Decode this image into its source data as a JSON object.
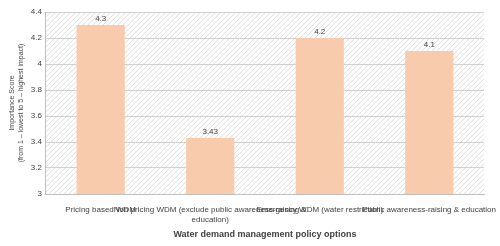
{
  "chart_data": {
    "type": "bar",
    "categories": [
      "Pricing based WDM",
      "Non pricing WDM (exclude public awareness-raising & education)",
      "Emergency WDM (water restriction)",
      "Public awareness-raising & education"
    ],
    "values": [
      4.3,
      3.43,
      4.2,
      4.1
    ],
    "color": "#f8cbad",
    "x_label": "Water demand management policy options",
    "y_label": "Importance Score\n(from 1 – lowest to 5 – highest impact)",
    "ylim": [
      3,
      4.4
    ],
    "yticks": [
      3,
      3.2,
      3.4,
      3.6,
      3.8,
      4,
      4.2,
      4.4
    ],
    "grid": true,
    "data_labels": true
  }
}
